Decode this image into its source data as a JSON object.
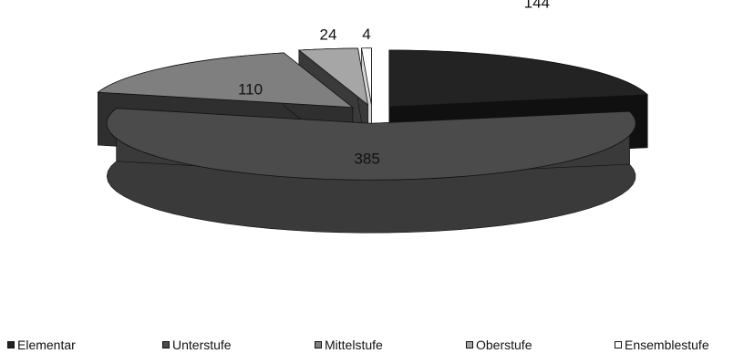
{
  "chart_data": {
    "type": "pie",
    "title": "",
    "categories": [
      "Elementar",
      "Unterstufe",
      "Mittelstufe",
      "Oberstufe",
      "Ensemblestufe"
    ],
    "values": [
      144,
      385,
      110,
      24,
      4
    ],
    "colors": {
      "Elementar": "#232323",
      "Unterstufe": "#4b4b4b",
      "Mittelstufe": "#7f7f7f",
      "Oberstufe": "#a6a6a6",
      "Ensemblestufe": "#ffffff"
    },
    "exploded": true,
    "three_d": true,
    "legend_position": "bottom"
  }
}
